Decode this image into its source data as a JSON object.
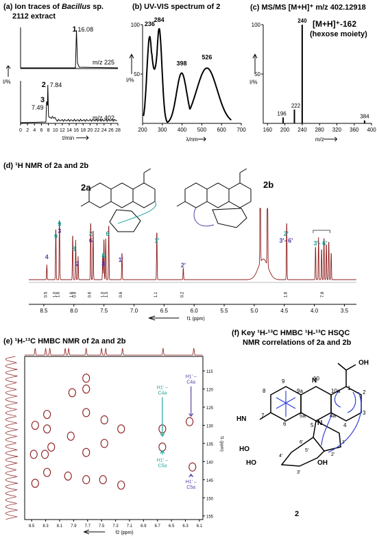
{
  "panels": {
    "a": {
      "title_pre": "(a) Ion traces of ",
      "title_em": "Bacillus",
      "title_post": " sp.",
      "title2": "2112 extract"
    },
    "b": {
      "title": "(b) UV-VIS spectrum of 2"
    },
    "c": {
      "title": "(c) MS/MS [M+H]⁺ m/z 402.12918",
      "annot1": "[M+H]⁺-162",
      "annot2": "(hexose moiety)"
    },
    "d": {
      "title": "(d) ¹H NMR of 2a and 2b",
      "label_2a": "2a",
      "label_2b": "2b"
    },
    "e": {
      "title": "(e) ¹H-¹³C HMBC NMR of 2a and 2b"
    },
    "f": {
      "title1": "(f) Key ¹H-¹³C HMBC ¹H-¹³C HSQC",
      "title2": "NMR correlations of 2a and 2b",
      "compound": "2"
    }
  },
  "colors": {
    "trace": "#000000",
    "nmr": "#8b1a1a",
    "teal": "#1aa39a",
    "purple": "#5a3ea3",
    "arrow": "#2f3fd6"
  },
  "chart_data": [
    {
      "id": "a",
      "type": "line",
      "xlabel": "t/min",
      "ylabel": "I/%",
      "x_ticks": [
        0,
        2,
        4,
        6,
        8,
        10,
        12,
        14,
        16,
        18,
        20,
        22,
        24,
        26,
        28
      ],
      "series": [
        {
          "name": "m/z 225",
          "peak_labels": [
            {
              "label": "1",
              "rt": "16.08"
            }
          ]
        },
        {
          "name": "m/z 402",
          "peak_labels": [
            {
              "label": "2",
              "rt": "7.84"
            },
            {
              "label": "3",
              "rt": "7.49"
            }
          ]
        }
      ]
    },
    {
      "id": "b",
      "type": "line",
      "xlabel": "λ/nm",
      "ylabel": "I/%",
      "xlim": [
        200,
        700
      ],
      "ylim": [
        0,
        100
      ],
      "x_ticks": [
        200,
        300,
        400,
        500,
        600,
        700
      ],
      "y_ticks": [
        0,
        50,
        100
      ],
      "peaks": [
        {
          "x": 236,
          "label": "236"
        },
        {
          "x": 284,
          "label": "284"
        },
        {
          "x": 398,
          "label": "398"
        },
        {
          "x": 526,
          "label": "526"
        }
      ]
    },
    {
      "id": "c",
      "type": "bar",
      "xlabel": "m/z",
      "ylabel": "I/%",
      "xlim": [
        150,
        400
      ],
      "ylim": [
        0,
        100
      ],
      "x_ticks": [
        160,
        200,
        240,
        280,
        320,
        360,
        400
      ],
      "y_ticks": [
        0,
        50,
        100
      ],
      "bars": [
        {
          "mz": 196,
          "label": "196"
        },
        {
          "mz": 222,
          "label": "222"
        },
        {
          "mz": 240,
          "label": "240"
        },
        {
          "mz": 384,
          "label": "384"
        }
      ]
    },
    {
      "id": "d",
      "type": "line",
      "xlabel": "f1 (ppm)",
      "x_ticks": [
        "8.5",
        "8.0",
        "7.5",
        "7.0",
        "6.5",
        "6.0",
        "5.5",
        "5.0",
        "4.5",
        "4.0",
        "3.5"
      ],
      "peak_labels": [
        "4",
        "9",
        "9",
        "3",
        "3",
        "2",
        "2",
        "6",
        "8",
        "8",
        "6",
        "1'",
        "1'",
        "2'",
        "2'",
        "3'- 6'",
        "3'- 6'"
      ],
      "integrals": [
        "0.5",
        "1.0",
        "1.6",
        "1.6",
        "0.8",
        "0.6",
        "1.0",
        "1.5",
        "0.6",
        "1.1",
        "0.2",
        "1.6",
        "7.8"
      ]
    },
    {
      "id": "e",
      "type": "heatmap",
      "xlabel": "f2 (ppm)",
      "ylabel": "f1 (ppm)",
      "x_ticks": [
        "8.5",
        "8.3",
        "8.1",
        "7.9",
        "7.7",
        "7.5",
        "7.3",
        "7.1",
        "6.9",
        "6.7",
        "6.5",
        "6.3",
        "6.1"
      ],
      "y_ticks": [
        "115",
        "120",
        "125",
        "130",
        "135",
        "140",
        "145",
        "150",
        "155"
      ],
      "annotations": [
        {
          "line1": "H1' –",
          "line2": "C4a"
        },
        {
          "line1": "H1' –",
          "line2": "C4a"
        },
        {
          "line1": "H1' –",
          "line2": "C5a"
        },
        {
          "line1": "H1' –",
          "line2": "C5a"
        }
      ]
    }
  ],
  "structure": {
    "ring_labels": [
      "9",
      "9a",
      "10",
      "10a",
      "1",
      "2",
      "3",
      "4",
      "4a",
      "5a",
      "6",
      "7",
      "8",
      "5"
    ],
    "sugar_labels": [
      "1'",
      "2'",
      "3'",
      "4'",
      "5'",
      "6'"
    ],
    "groups": {
      "acid": "OH",
      "oh1": "HO",
      "oh2": "HO",
      "oh3": "OH",
      "nh": "HN",
      "n10": "N",
      "n5": "N"
    }
  }
}
